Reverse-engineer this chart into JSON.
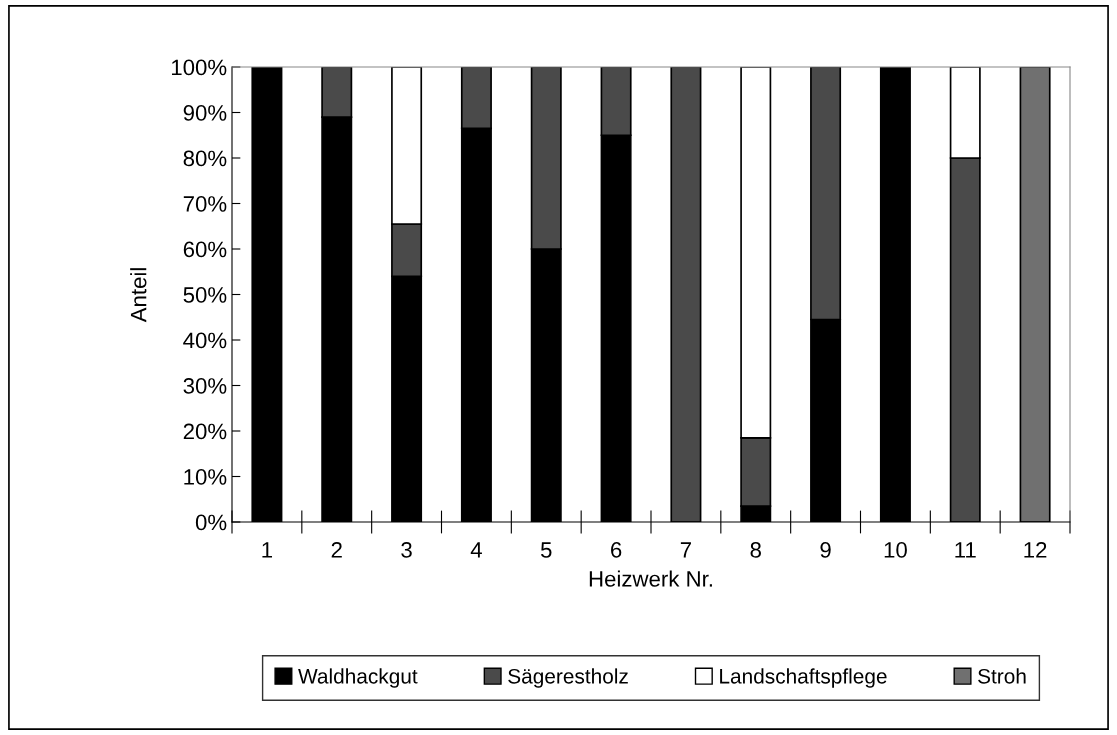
{
  "chart_data": {
    "type": "bar",
    "stacked": true,
    "xlabel": "Heizwerk Nr.",
    "ylabel": "Anteil",
    "categories": [
      "1",
      "2",
      "3",
      "4",
      "5",
      "6",
      "7",
      "8",
      "9",
      "10",
      "11",
      "12"
    ],
    "series": [
      {
        "name": "Waldhackgut",
        "color": "#000000",
        "values": [
          100,
          89,
          54,
          86.5,
          60,
          85,
          0,
          3.5,
          44.5,
          100,
          0,
          0
        ]
      },
      {
        "name": "Sägerestholz",
        "color": "#4a4a4a",
        "values": [
          0,
          11,
          11.5,
          13.5,
          40,
          15,
          100,
          15,
          55.5,
          0,
          80,
          0
        ]
      },
      {
        "name": "Landschaftspflege",
        "color": "#ffffff",
        "values": [
          0,
          0,
          34.5,
          0,
          0,
          0,
          0,
          81.5,
          0,
          0,
          20,
          0
        ]
      },
      {
        "name": "Stroh",
        "color": "#707070",
        "values": [
          0,
          0,
          0,
          0,
          0,
          0,
          0,
          0,
          0,
          0,
          0,
          100
        ]
      }
    ],
    "ylim": [
      0,
      100
    ],
    "yticks": [
      {
        "value": 0,
        "label": "0%"
      },
      {
        "value": 10,
        "label": "10%"
      },
      {
        "value": 20,
        "label": "20%"
      },
      {
        "value": 30,
        "label": "30%"
      },
      {
        "value": 40,
        "label": "40%"
      },
      {
        "value": 50,
        "label": "50%"
      },
      {
        "value": 60,
        "label": "60%"
      },
      {
        "value": 70,
        "label": "70%"
      },
      {
        "value": 80,
        "label": "80%"
      },
      {
        "value": 90,
        "label": "90%"
      },
      {
        "value": 100,
        "label": "100%"
      }
    ],
    "grid": false,
    "legend": "bottom"
  }
}
